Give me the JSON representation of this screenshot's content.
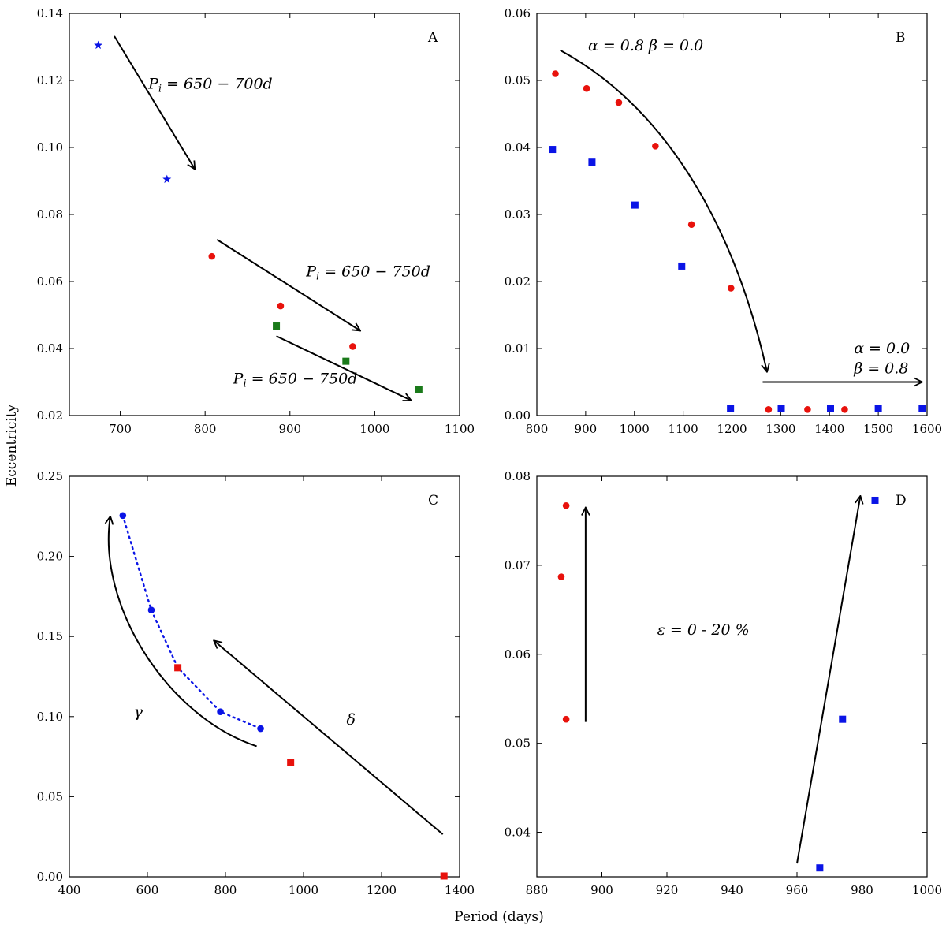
{
  "colors": {
    "red": "#e8120c",
    "blue": "#0a14e6",
    "green": "#1a7a1a",
    "black": "#000000"
  },
  "figure": {
    "xlabel": "Period (days)",
    "ylabel": "Eccentricity"
  },
  "chart_data": [
    {
      "id": "A",
      "type": "scatter",
      "panel_label": "A",
      "xlim": [
        640,
        1100
      ],
      "ylim": [
        0.02,
        0.14
      ],
      "xticks": [
        700,
        800,
        900,
        1000,
        1100
      ],
      "yticks": [
        0.02,
        0.04,
        0.06,
        0.08,
        0.1,
        0.12,
        0.14
      ],
      "xtick_labels": [
        "700",
        "800",
        "900",
        "1000",
        "1100"
      ],
      "ytick_labels": [
        "0.02",
        "0.04",
        "0.06",
        "0.08",
        "0.10",
        "0.12",
        "0.14"
      ],
      "series": [
        {
          "color": "blue",
          "marker": "star",
          "x": [
            674,
            755
          ],
          "y": [
            0.1305,
            0.0905
          ]
        },
        {
          "color": "red",
          "marker": "circle",
          "x": [
            808,
            889,
            974
          ],
          "y": [
            0.0675,
            0.0527,
            0.0406
          ]
        },
        {
          "color": "green",
          "marker": "square",
          "x": [
            884,
            966,
            1052
          ],
          "y": [
            0.0467,
            0.0362,
            0.0277
          ]
        }
      ],
      "arrows": [
        {
          "points": [
            [
              693,
              0.1332
            ],
            [
              788,
              0.0935
            ]
          ]
        },
        {
          "points": [
            [
              814,
              0.0725
            ],
            [
              983,
              0.0453
            ]
          ]
        },
        {
          "points": [
            [
              884,
              0.0437
            ],
            [
              1043,
              0.0245
            ]
          ]
        }
      ],
      "annotations": [
        {
          "text": "P_i = 650 − 700d",
          "x": 733,
          "y": 0.1175
        },
        {
          "text": "P_i = 650 − 750d",
          "x": 919,
          "y": 0.0615
        },
        {
          "text": "P_i = 650 − 750d",
          "x": 833,
          "y": 0.0295
        }
      ]
    },
    {
      "id": "B",
      "type": "scatter",
      "panel_label": "B",
      "xlim": [
        800,
        1600
      ],
      "ylim": [
        0.0,
        0.06
      ],
      "xticks": [
        800,
        900,
        1000,
        1100,
        1200,
        1300,
        1400,
        1500,
        1600
      ],
      "yticks": [
        0.0,
        0.01,
        0.02,
        0.03,
        0.04,
        0.05,
        0.06
      ],
      "xtick_labels": [
        "800",
        "900",
        "1000",
        "1100",
        "1200",
        "1300",
        "1400",
        "1500",
        "1600"
      ],
      "ytick_labels": [
        "0.00",
        "0.01",
        "0.02",
        "0.03",
        "0.04",
        "0.05",
        "0.06"
      ],
      "series": [
        {
          "color": "red",
          "marker": "circle",
          "x": [
            838,
            902,
            968,
            1043,
            1117,
            1198,
            1275,
            1355,
            1431
          ],
          "y": [
            0.051,
            0.0488,
            0.0467,
            0.0402,
            0.0285,
            0.019,
            0.0009,
            0.0009,
            0.0009
          ]
        },
        {
          "color": "blue",
          "marker": "square",
          "x": [
            832,
            913,
            1001,
            1097,
            1197,
            1301,
            1402,
            1500,
            1590
          ],
          "y": [
            0.0397,
            0.0378,
            0.0314,
            0.0223,
            0.001,
            0.001,
            0.001,
            0.001,
            0.001
          ]
        }
      ],
      "arrows": [
        {
          "points": [
            [
              848,
              0.0545
            ],
            [
              1050,
              0.0465
            ],
            [
              1200,
              0.03
            ],
            [
              1272,
              0.0065
            ]
          ]
        },
        {
          "points": [
            [
              1263,
              0.005
            ],
            [
              1590,
              0.005
            ]
          ]
        }
      ],
      "annotations": [
        {
          "text": "α = 0.8 β = 0.0",
          "x": 905,
          "y": 0.0545
        },
        {
          "text": "α = 0.0",
          "x": 1450,
          "y": 0.0093
        },
        {
          "text": "β = 0.8",
          "x": 1450,
          "y": 0.0063
        }
      ]
    },
    {
      "id": "C",
      "type": "scatter",
      "panel_label": "C",
      "xlim": [
        400,
        1400
      ],
      "ylim": [
        0.0,
        0.25
      ],
      "xticks": [
        400,
        600,
        800,
        1000,
        1200,
        1400
      ],
      "yticks": [
        0.0,
        0.05,
        0.1,
        0.15,
        0.2,
        0.25
      ],
      "xtick_labels": [
        "400",
        "600",
        "800",
        "1000",
        "1200",
        "1400"
      ],
      "ytick_labels": [
        "0.00",
        "0.05",
        "0.10",
        "0.15",
        "0.20",
        "0.25"
      ],
      "series": [
        {
          "color": "blue",
          "marker": "circle",
          "line": "dotted",
          "x": [
            537,
            610,
            678,
            787,
            890
          ],
          "y": [
            0.2255,
            0.1665,
            0.1305,
            0.103,
            0.0925
          ]
        },
        {
          "color": "red",
          "marker": "square",
          "x": [
            678,
            967,
            1360
          ],
          "y": [
            0.1305,
            0.0715,
            0.0005
          ]
        }
      ],
      "arrows": [
        {
          "points": [
            [
              880,
              0.0815
            ],
            [
              650,
              0.1
            ],
            [
              470,
              0.17
            ],
            [
              505,
              0.225
            ]
          ]
        },
        {
          "points": [
            [
              1357,
              0.0265
            ],
            [
              770,
              0.1475
            ]
          ]
        }
      ],
      "annotations": [
        {
          "text": "γ",
          "x": 565,
          "y": 0.1
        },
        {
          "text": "δ",
          "x": 1110,
          "y": 0.095
        }
      ]
    },
    {
      "id": "D",
      "type": "scatter",
      "panel_label": "D",
      "xlim": [
        880,
        1000
      ],
      "ylim": [
        0.035,
        0.08
      ],
      "xticks": [
        880,
        900,
        920,
        940,
        960,
        980,
        1000
      ],
      "yticks": [
        0.04,
        0.05,
        0.06,
        0.07,
        0.08
      ],
      "xtick_labels": [
        "880",
        "900",
        "920",
        "940",
        "960",
        "980",
        "1000"
      ],
      "ytick_labels": [
        "0.04",
        "0.05",
        "0.06",
        "0.07",
        "0.08"
      ],
      "series": [
        {
          "color": "red",
          "marker": "circle",
          "x": [
            887.5,
            889,
            889
          ],
          "y": [
            0.0687,
            0.0767,
            0.0527
          ]
        },
        {
          "color": "blue",
          "marker": "square",
          "x": [
            967,
            974,
            984
          ],
          "y": [
            0.036,
            0.0527,
            0.0773
          ]
        }
      ],
      "arrows": [
        {
          "points": [
            [
              895,
              0.0524
            ],
            [
              895,
              0.0765
            ]
          ]
        },
        {
          "points": [
            [
              960,
              0.0365
            ],
            [
              979.5,
              0.0778
            ]
          ]
        }
      ],
      "annotations": [
        {
          "text": "ε = 0 - 20 %",
          "x": 917,
          "y": 0.0622
        }
      ]
    }
  ]
}
